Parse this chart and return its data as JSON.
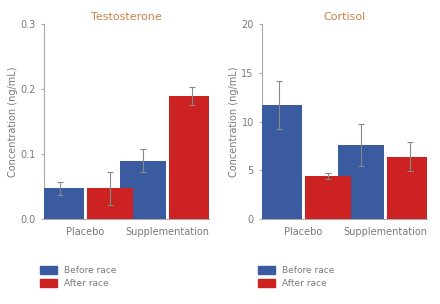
{
  "left_title": "Testosterone",
  "right_title": "Cortisol",
  "ylabel": "Concentration (ng/mL)",
  "categories": [
    "Placebo",
    "Supplementation"
  ],
  "blue_color": "#3a5ba0",
  "red_color": "#cc2222",
  "legend_labels": [
    "Before race",
    "After race"
  ],
  "testo_before": [
    0.047,
    0.09
  ],
  "testo_after": [
    0.047,
    0.19
  ],
  "testo_before_err": [
    0.01,
    0.018
  ],
  "testo_after_err": [
    0.025,
    0.014
  ],
  "testo_ylim": [
    0,
    0.3
  ],
  "testo_yticks": [
    0.0,
    0.1,
    0.2,
    0.3
  ],
  "cortisol_before": [
    11.7,
    7.6
  ],
  "cortisol_after": [
    4.4,
    6.4
  ],
  "cortisol_before_err": [
    2.5,
    2.2
  ],
  "cortisol_after_err": [
    0.35,
    1.5
  ],
  "cortisol_ylim": [
    0,
    20
  ],
  "cortisol_yticks": [
    0,
    5,
    10,
    15,
    20
  ],
  "title_color": "#c8834a",
  "axis_label_color": "#7a7a7a",
  "tick_label_color": "#7a7a7a",
  "spine_color": "#aaaaaa",
  "error_color": "#888888",
  "title_fontsize": 8.0,
  "axis_label_fontsize": 7.0,
  "tick_fontsize": 7.0,
  "legend_fontsize": 6.5,
  "bar_width": 0.28,
  "group_positions": [
    0.25,
    0.75
  ]
}
